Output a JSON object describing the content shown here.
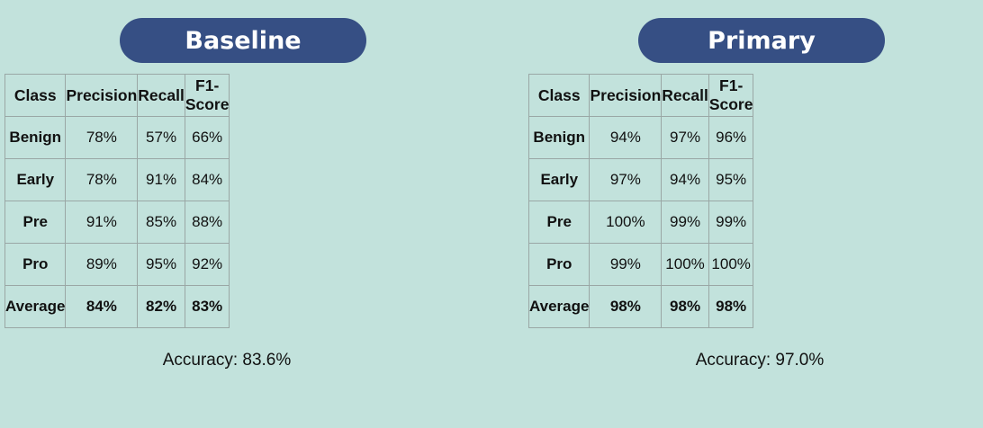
{
  "baseline": {
    "title": "Baseline",
    "headers": [
      "Class",
      "Precision",
      "Recall",
      "F1-Score"
    ],
    "rows": [
      [
        "Benign",
        "78%",
        "57%",
        "66%"
      ],
      [
        "Early",
        "78%",
        "91%",
        "84%"
      ],
      [
        "Pre",
        "91%",
        "85%",
        "88%"
      ],
      [
        "Pro",
        "89%",
        "95%",
        "92%"
      ],
      [
        "Average",
        "84%",
        "82%",
        "83%"
      ]
    ],
    "accuracy": "Accuracy: 83.6%"
  },
  "primary": {
    "title": "Primary",
    "headers": [
      "Class",
      "Precision",
      "Recall",
      "F1-Score"
    ],
    "rows": [
      [
        "Benign",
        "94%",
        "97%",
        "96%"
      ],
      [
        "Early",
        "97%",
        "94%",
        "95%"
      ],
      [
        "Pre",
        "100%",
        "99%",
        "99%"
      ],
      [
        "Pro",
        "99%",
        "100%",
        "100%"
      ],
      [
        "Average",
        "98%",
        "98%",
        "98%"
      ]
    ],
    "accuracy": "Accuracy: 97.0%"
  },
  "colors": {
    "background": "#c2e2dc",
    "pill": "#364f84",
    "pill_text": "#ffffff",
    "grid": "#9aa7a5"
  }
}
